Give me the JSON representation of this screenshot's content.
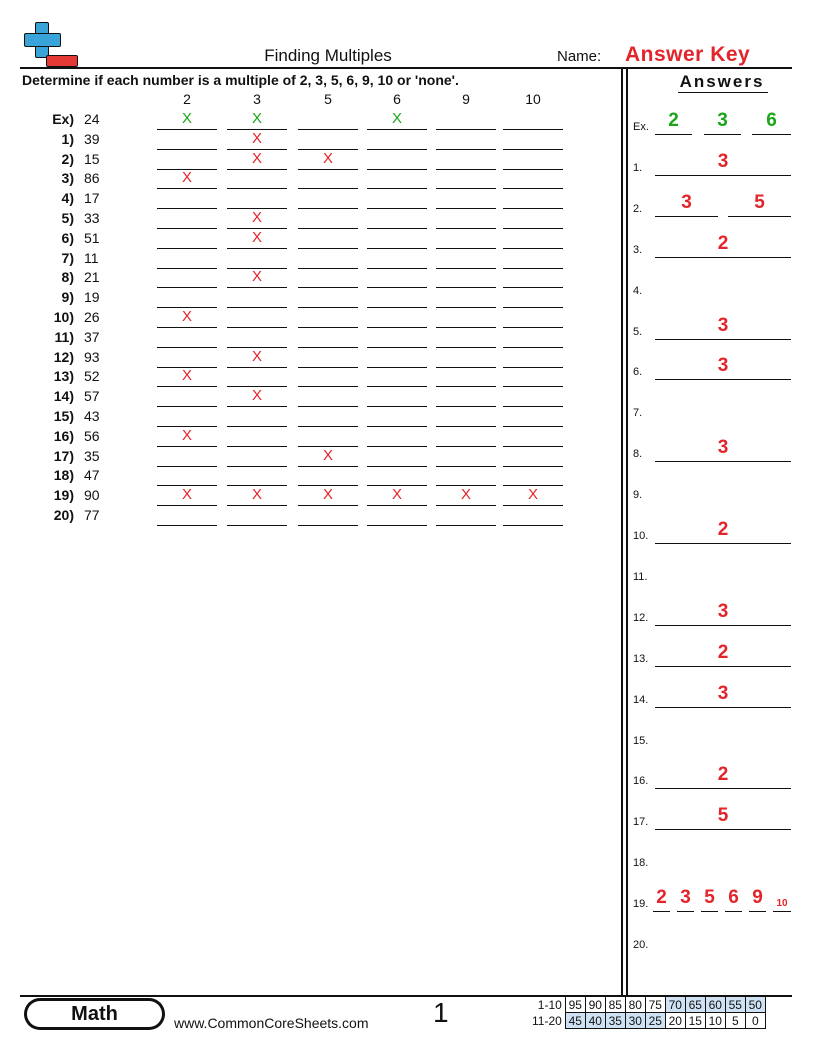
{
  "header": {
    "title": "Finding Multiples",
    "name_label": "Name:",
    "answer_key": "Answer Key"
  },
  "instructions": "Determine if each number is a multiple of 2, 3, 5, 6, 9, 10 or 'none'.",
  "columns": [
    "2",
    "3",
    "5",
    "6",
    "9",
    "10"
  ],
  "mark_symbol": "X",
  "colors": {
    "correct_red": "#e3242b",
    "example_green": "#1aa51a",
    "logo_blue": "#3aa4d8",
    "score_blue": "#cfe2f3"
  },
  "problems": [
    {
      "label": "Ex)",
      "number": "24",
      "marks": [
        0,
        1,
        3
      ],
      "green": true
    },
    {
      "label": "1)",
      "number": "39",
      "marks": [
        1
      ]
    },
    {
      "label": "2)",
      "number": "15",
      "marks": [
        1,
        2
      ]
    },
    {
      "label": "3)",
      "number": "86",
      "marks": [
        0
      ]
    },
    {
      "label": "4)",
      "number": "17",
      "marks": []
    },
    {
      "label": "5)",
      "number": "33",
      "marks": [
        1
      ]
    },
    {
      "label": "6)",
      "number": "51",
      "marks": [
        1
      ]
    },
    {
      "label": "7)",
      "number": "11",
      "marks": []
    },
    {
      "label": "8)",
      "number": "21",
      "marks": [
        1
      ]
    },
    {
      "label": "9)",
      "number": "19",
      "marks": []
    },
    {
      "label": "10)",
      "number": "26",
      "marks": [
        0
      ]
    },
    {
      "label": "11)",
      "number": "37",
      "marks": []
    },
    {
      "label": "12)",
      "number": "93",
      "marks": [
        1
      ]
    },
    {
      "label": "13)",
      "number": "52",
      "marks": [
        0
      ]
    },
    {
      "label": "14)",
      "number": "57",
      "marks": [
        1
      ]
    },
    {
      "label": "15)",
      "number": "43",
      "marks": []
    },
    {
      "label": "16)",
      "number": "56",
      "marks": [
        0
      ]
    },
    {
      "label": "17)",
      "number": "35",
      "marks": [
        2
      ]
    },
    {
      "label": "18)",
      "number": "47",
      "marks": []
    },
    {
      "label": "19)",
      "number": "90",
      "marks": [
        0,
        1,
        2,
        3,
        4,
        5
      ]
    },
    {
      "label": "20)",
      "number": "77",
      "marks": []
    }
  ],
  "answers": {
    "title": "Answers",
    "items": [
      {
        "label": "Ex.",
        "values": [
          "2",
          "3",
          "6"
        ],
        "green": true
      },
      {
        "label": "1.",
        "values": [
          "3"
        ]
      },
      {
        "label": "2.",
        "values": [
          "3",
          "5"
        ]
      },
      {
        "label": "3.",
        "values": [
          "2"
        ]
      },
      {
        "label": "4.",
        "values": []
      },
      {
        "label": "5.",
        "values": [
          "3"
        ]
      },
      {
        "label": "6.",
        "values": [
          "3"
        ]
      },
      {
        "label": "7.",
        "values": []
      },
      {
        "label": "8.",
        "values": [
          "3"
        ]
      },
      {
        "label": "9.",
        "values": []
      },
      {
        "label": "10.",
        "values": [
          "2"
        ]
      },
      {
        "label": "11.",
        "values": []
      },
      {
        "label": "12.",
        "values": [
          "3"
        ]
      },
      {
        "label": "13.",
        "values": [
          "2"
        ]
      },
      {
        "label": "14.",
        "values": [
          "3"
        ]
      },
      {
        "label": "15.",
        "values": []
      },
      {
        "label": "16.",
        "values": [
          "2"
        ]
      },
      {
        "label": "17.",
        "values": [
          "5"
        ]
      },
      {
        "label": "18.",
        "values": []
      },
      {
        "label": "19.",
        "values": [
          "2",
          "3",
          "5",
          "6",
          "9",
          "10"
        ]
      },
      {
        "label": "20.",
        "values": []
      }
    ]
  },
  "footer": {
    "subject": "Math",
    "website": "www.CommonCoreSheets.com",
    "page_number": "1",
    "score_rows": [
      {
        "label": "1-10",
        "scores": [
          "95",
          "90",
          "85",
          "80",
          "75",
          "70",
          "65",
          "60",
          "55",
          "50"
        ]
      },
      {
        "label": "11-20",
        "scores": [
          "45",
          "40",
          "35",
          "30",
          "25",
          "20",
          "15",
          "10",
          "5",
          "0"
        ]
      }
    ]
  }
}
